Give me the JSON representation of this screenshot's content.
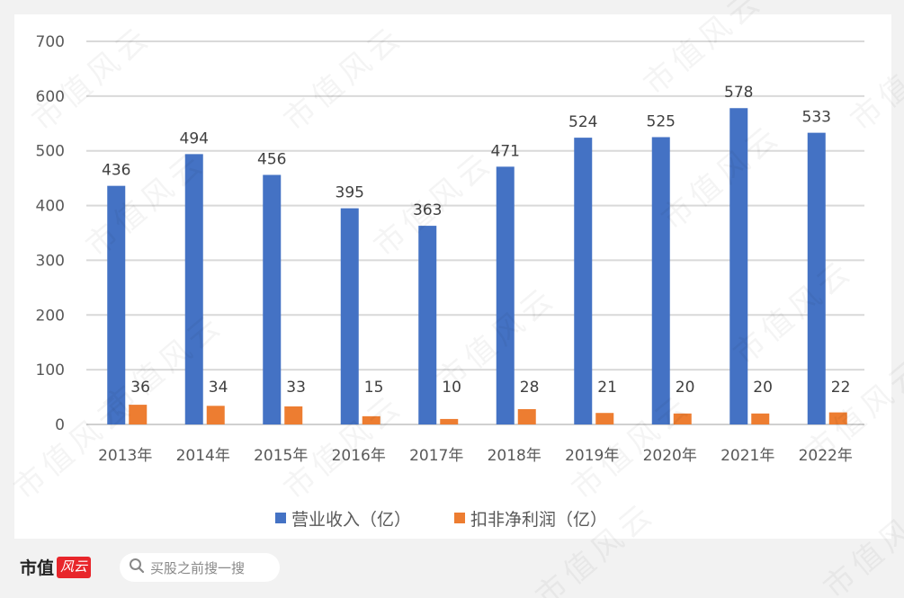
{
  "chart_data": {
    "type": "bar",
    "title": "",
    "xlabel": "",
    "ylabel": "",
    "categories": [
      "2013年",
      "2014年",
      "2015年",
      "2016年",
      "2017年",
      "2018年",
      "2019年",
      "2020年",
      "2021年",
      "2022年"
    ],
    "series": [
      {
        "name": "营业收入（亿）",
        "color": "#4472c4",
        "values": [
          436,
          494,
          456,
          395,
          363,
          471,
          524,
          525,
          578,
          533
        ]
      },
      {
        "name": "扣非净利润（亿）",
        "color": "#ed7d31",
        "values": [
          36,
          34,
          33,
          15,
          10,
          28,
          21,
          20,
          20,
          22
        ]
      }
    ],
    "ylim": [
      0,
      700
    ],
    "yticks": [
      "0",
      "100",
      "200",
      "300",
      "400",
      "500",
      "600",
      "700"
    ],
    "grid": true,
    "legend_position": "bottom",
    "data_labels": true
  },
  "legend": {
    "items": [
      {
        "label": "营业收入（亿）",
        "color": "#4472c4"
      },
      {
        "label": "扣非净利润（亿）",
        "color": "#ed7d31"
      }
    ]
  },
  "footer": {
    "brand_text": "市值",
    "brand_badge": "风云",
    "search_placeholder": "买股之前搜一搜",
    "search_icon": "search-icon"
  },
  "watermark": "市值风云"
}
